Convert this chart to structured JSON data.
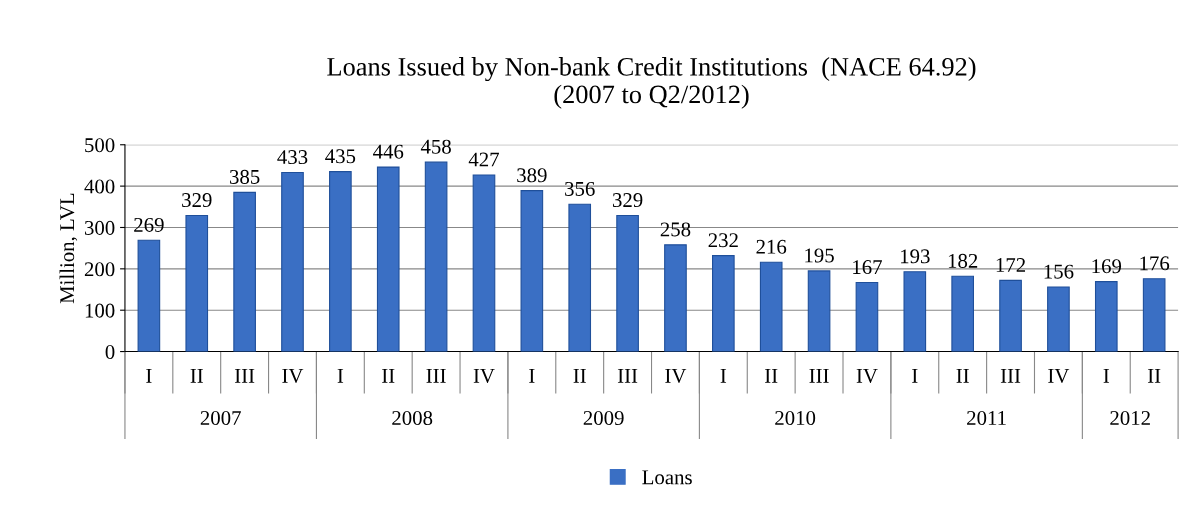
{
  "chart_data": {
    "type": "bar",
    "title": "Loans Issued by Non-bank Credit Institutions  (NACE 64.92)\n(2007 to Q2/2012)",
    "ylabel": "Million, LVL",
    "categories": [
      "I",
      "II",
      "III",
      "IV",
      "I",
      "II",
      "III",
      "IV",
      "I",
      "II",
      "III",
      "IV",
      "I",
      "II",
      "III",
      "IV",
      "I",
      "II",
      "III",
      "IV",
      "I",
      "II"
    ],
    "series": [
      {
        "name": "Loans",
        "color": "#3a6fc4",
        "values": [
          269,
          329,
          385,
          433,
          435,
          446,
          458,
          427,
          389,
          356,
          329,
          258,
          232,
          216,
          195,
          167,
          193,
          182,
          172,
          156,
          169,
          176
        ]
      }
    ],
    "annotations": [
      "2007",
      "2008",
      "2009",
      "2010",
      "2011",
      "2012"
    ],
    "ylim": [
      0,
      500
    ],
    "yticks": [
      0,
      100,
      200,
      300,
      400,
      500
    ],
    "grid": "y",
    "data_labels": true,
    "legend": "bottom"
  }
}
